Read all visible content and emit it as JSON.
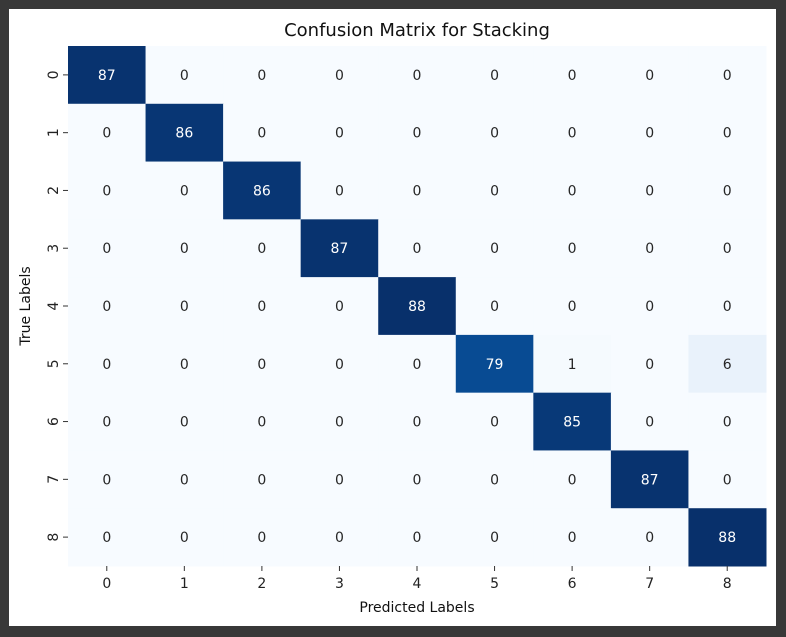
{
  "chart_data": {
    "type": "heatmap",
    "title": "Confusion Matrix for Stacking",
    "xlabel": "Predicted Labels",
    "ylabel": "True Labels",
    "x_categories": [
      "0",
      "1",
      "2",
      "3",
      "4",
      "5",
      "6",
      "7",
      "8"
    ],
    "y_categories": [
      "0",
      "1",
      "2",
      "3",
      "4",
      "5",
      "6",
      "7",
      "8"
    ],
    "values": [
      [
        87,
        0,
        0,
        0,
        0,
        0,
        0,
        0,
        0
      ],
      [
        0,
        86,
        0,
        0,
        0,
        0,
        0,
        0,
        0
      ],
      [
        0,
        0,
        86,
        0,
        0,
        0,
        0,
        0,
        0
      ],
      [
        0,
        0,
        0,
        87,
        0,
        0,
        0,
        0,
        0
      ],
      [
        0,
        0,
        0,
        0,
        88,
        0,
        0,
        0,
        0
      ],
      [
        0,
        0,
        0,
        0,
        0,
        79,
        1,
        0,
        6
      ],
      [
        0,
        0,
        0,
        0,
        0,
        0,
        85,
        0,
        0
      ],
      [
        0,
        0,
        0,
        0,
        0,
        0,
        0,
        87,
        0
      ],
      [
        0,
        0,
        0,
        0,
        0,
        0,
        0,
        0,
        88
      ]
    ],
    "colormap": "Blues",
    "color_low": "#f7fbff",
    "color_high": "#08306b",
    "vmin": 0,
    "vmax": 88,
    "colorbar": false
  }
}
